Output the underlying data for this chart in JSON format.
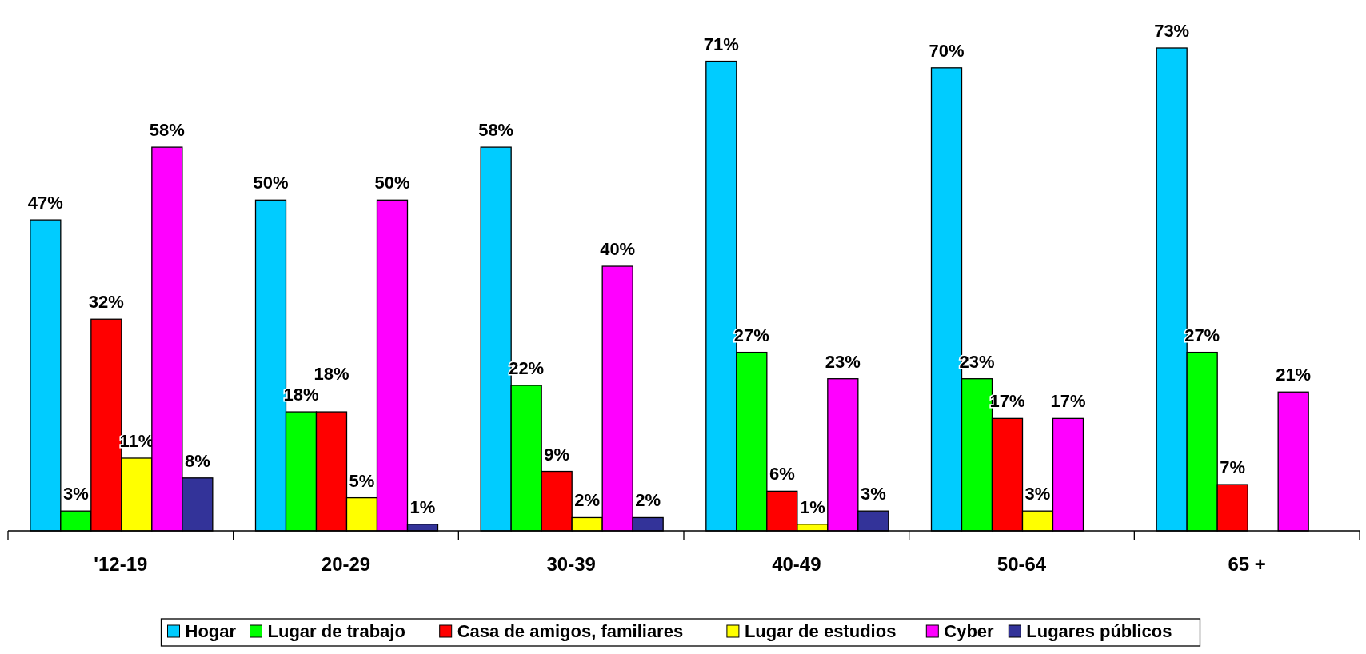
{
  "chart_data": {
    "type": "bar",
    "categories": [
      "'12-19",
      "20-29",
      "30-39",
      "40-49",
      "50-64",
      "65 +"
    ],
    "series": [
      {
        "name": "Hogar",
        "color": "#00ccff",
        "values": [
          47,
          50,
          58,
          71,
          70,
          73
        ],
        "value_labels": [
          "47%",
          "50%",
          "58%",
          "71%",
          "70%",
          "73%"
        ]
      },
      {
        "name": "Lugar de trabajo",
        "color": "#00ff00",
        "values": [
          3,
          18,
          22,
          27,
          23,
          27
        ],
        "value_labels": [
          "3%",
          "18%",
          "22%",
          "27%",
          "23%",
          "27%"
        ]
      },
      {
        "name": "Casa de amigos, familiares",
        "color": "#ff0000",
        "values": [
          32,
          18,
          9,
          6,
          17,
          7
        ],
        "value_labels": [
          "32%",
          "18%",
          "9%",
          "6%",
          "17%",
          "7%"
        ]
      },
      {
        "name": "Lugar de estudios",
        "color": "#ffff00",
        "values": [
          11,
          5,
          2,
          1,
          3,
          null
        ],
        "value_labels": [
          "11%",
          "5%",
          "2%",
          "1%",
          "3%",
          null
        ]
      },
      {
        "name": "Cyber",
        "color": "#ff00ff",
        "values": [
          58,
          50,
          40,
          23,
          17,
          21
        ],
        "value_labels": [
          "58%",
          "50%",
          "40%",
          "23%",
          "17%",
          "21%"
        ]
      },
      {
        "name": "Lugares públicos",
        "color": "#333399",
        "values": [
          8,
          1,
          2,
          3,
          null,
          null
        ],
        "value_labels": [
          "8%",
          "1%",
          "2%",
          "3%",
          null,
          null
        ]
      }
    ],
    "legend": "bottom",
    "grid": false
  }
}
